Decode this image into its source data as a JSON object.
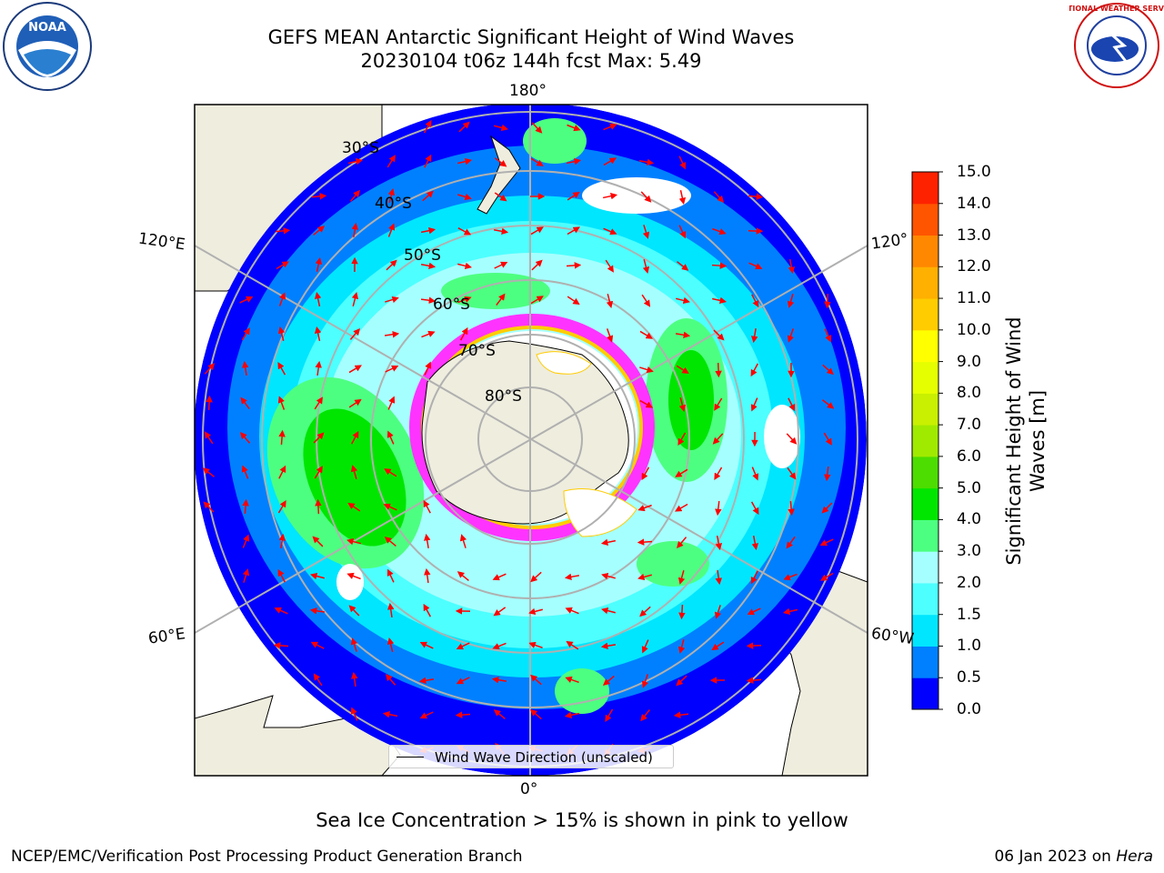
{
  "header": {
    "title_line1": "GEFS MEAN Antarctic Significant Height of Wind Waves",
    "title_line2": "20230104 t06z 144h fcst   Max: 5.49"
  },
  "map": {
    "projection": "south-polar-stereographic",
    "longitude_labels": {
      "top": "180°",
      "left": "120°E",
      "right": "120°",
      "lower_left": "60°E",
      "lower_right": "60°W",
      "bottom": "0°"
    },
    "latitude_labels": [
      "30°S",
      "40°S",
      "50°S",
      "60°S",
      "70°S",
      "80°S"
    ],
    "legend_entry": "Wind Wave Direction (unscaled)",
    "arrow_color": "#ff0000",
    "land_color": "#efedde",
    "ice_colors": [
      "#ff33ff",
      "#ffffff",
      "#ffcc00"
    ]
  },
  "colorbar": {
    "label_line1": "Significant Height of Wind",
    "label_line2": "Waves [m]",
    "ticks": [
      "0.0",
      "0.5",
      "1.0",
      "1.5",
      "2.0",
      "3.0",
      "4.0",
      "5.0",
      "6.0",
      "7.0",
      "8.0",
      "9.0",
      "10.0",
      "11.0",
      "12.0",
      "13.0",
      "14.0",
      "15.0"
    ],
    "colors": [
      "#0000ff",
      "#0080ff",
      "#00e6ff",
      "#4dffff",
      "#a6ffff",
      "#4dff80",
      "#00e600",
      "#4ddd00",
      "#a0ea00",
      "#c8f000",
      "#e6ff00",
      "#ffff00",
      "#ffcc00",
      "#ffb000",
      "#ff8800",
      "#ff5500",
      "#ff2200"
    ]
  },
  "caption": "Sea Ice Concentration > 15% is shown in pink to yellow",
  "footer": {
    "left": "NCEP/EMC/Verification Post Processing Product Generation Branch",
    "right_date": "06 Jan 2023 on ",
    "right_host": "Hera"
  },
  "logos": {
    "noaa_text": "NOAA",
    "nws_text": "NATIONAL WEATHER SERVICE"
  }
}
